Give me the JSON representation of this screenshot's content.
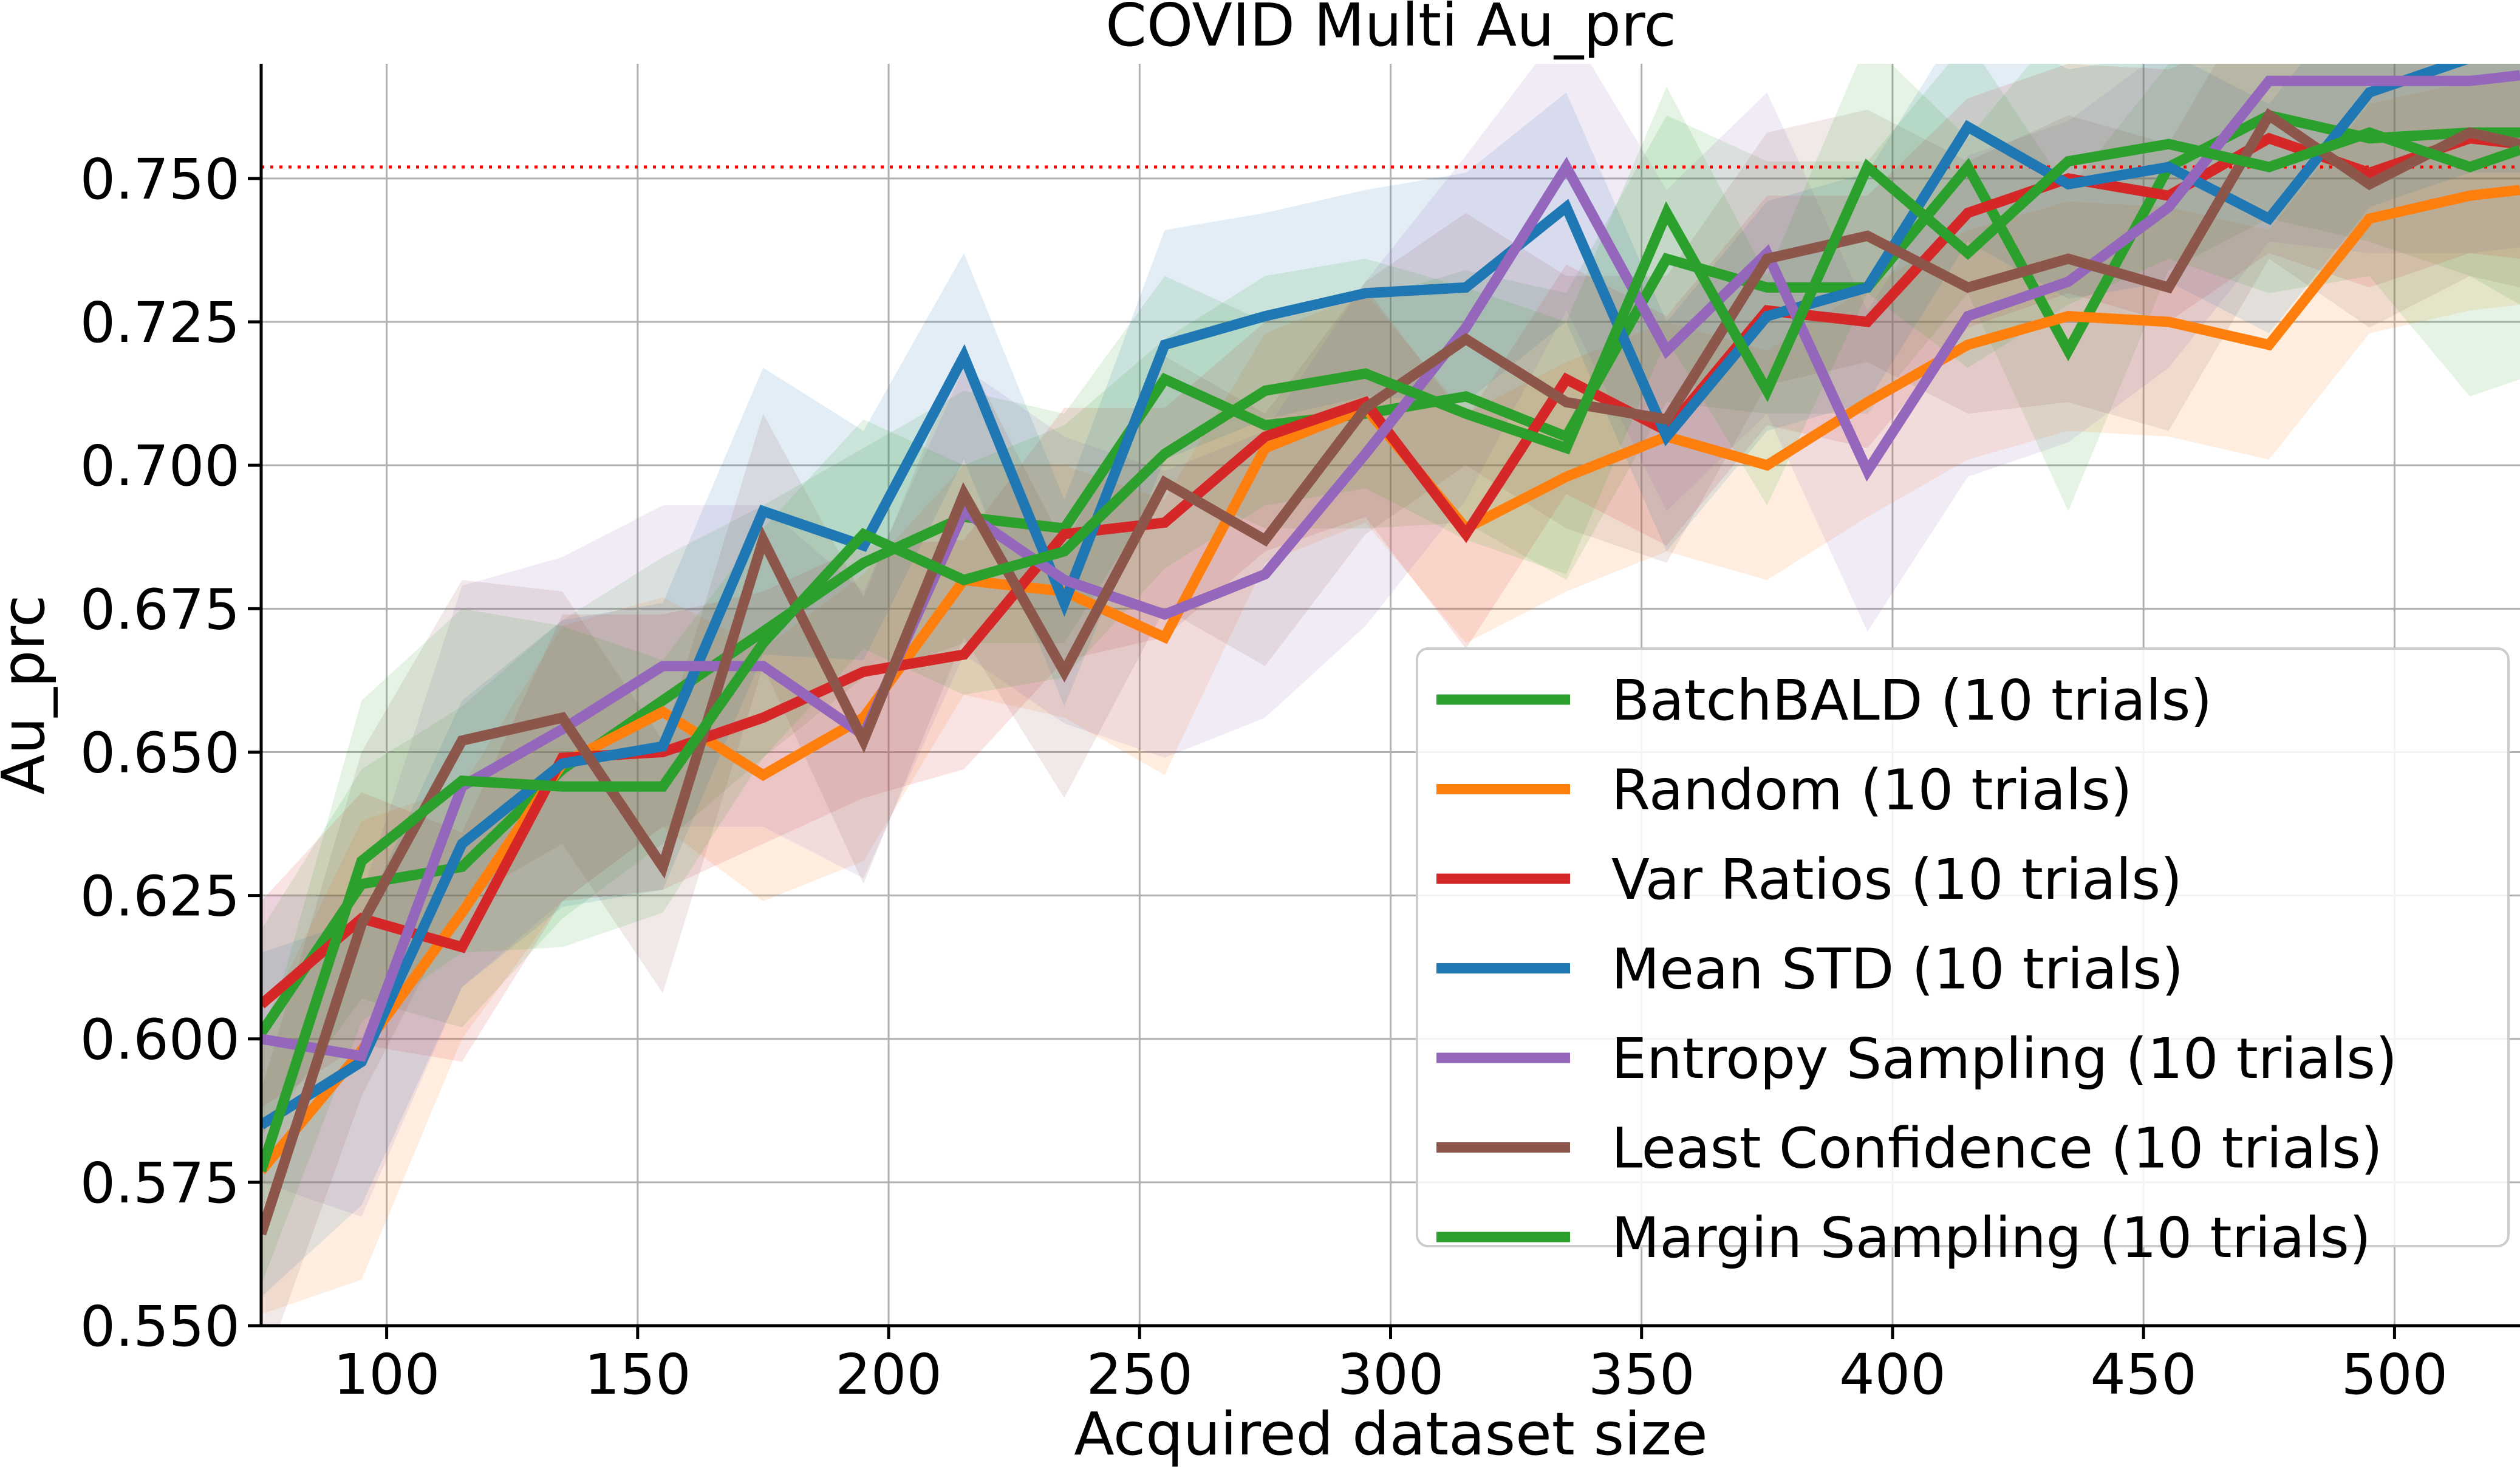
{
  "chart_data": {
    "type": "line",
    "title": "COVID Multi Au_prc",
    "xlabel": "Acquired dataset size",
    "ylabel": "Au_prc",
    "xlim": [
      75,
      525
    ],
    "ylim": [
      0.55,
      0.77
    ],
    "xticks": [
      100,
      150,
      200,
      250,
      300,
      350,
      400,
      450,
      500
    ],
    "yticks": [
      0.55,
      0.575,
      0.6,
      0.625,
      0.65,
      0.675,
      0.7,
      0.725,
      0.75
    ],
    "ytick_labels": [
      "0.550",
      "0.575",
      "0.600",
      "0.625",
      "0.650",
      "0.675",
      "0.700",
      "0.725",
      "0.750"
    ],
    "grid": true,
    "legend_position": "lower-right",
    "reference_line": {
      "y": 0.752,
      "color": "#ff0000",
      "style": "dotted"
    },
    "x": [
      75,
      95,
      115,
      135,
      155,
      175,
      195,
      215,
      235,
      255,
      275,
      295,
      315,
      335,
      355,
      375,
      395,
      415,
      435,
      455,
      475,
      495,
      515,
      525
    ],
    "series": [
      {
        "name": "BatchBALD (10 trials)",
        "color": "#2ca02c",
        "values": [
          0.601,
          0.627,
          0.63,
          0.647,
          0.659,
          0.671,
          0.683,
          0.691,
          0.689,
          0.715,
          0.707,
          0.709,
          0.712,
          0.705,
          0.736,
          0.731,
          0.731,
          0.752,
          0.72,
          0.752,
          0.761,
          0.757,
          0.758,
          0.758
        ],
        "band": [
          0.018,
          0.02,
          0.028,
          0.026,
          0.025,
          0.022,
          0.02,
          0.022,
          0.02,
          0.018,
          0.018,
          0.02,
          0.022,
          0.025,
          0.025,
          0.022,
          0.022,
          0.022,
          0.028,
          0.018,
          0.018,
          0.018,
          0.025,
          0.03
        ]
      },
      {
        "name": "Random (10 trials)",
        "color": "#ff7f0e",
        "values": [
          0.577,
          0.598,
          0.622,
          0.648,
          0.657,
          0.646,
          0.656,
          0.68,
          0.678,
          0.67,
          0.703,
          0.71,
          0.689,
          0.698,
          0.705,
          0.7,
          0.711,
          0.721,
          0.726,
          0.725,
          0.721,
          0.743,
          0.747,
          0.748
        ],
        "band": [
          0.025,
          0.04,
          0.022,
          0.024,
          0.02,
          0.022,
          0.025,
          0.02,
          0.022,
          0.024,
          0.02,
          0.02,
          0.02,
          0.02,
          0.02,
          0.02,
          0.02,
          0.02,
          0.02,
          0.02,
          0.02,
          0.02,
          0.02,
          0.02
        ]
      },
      {
        "name": "Var Ratios (10 trials)",
        "color": "#d62728",
        "values": [
          0.606,
          0.621,
          0.616,
          0.649,
          0.65,
          0.656,
          0.664,
          0.667,
          0.688,
          0.69,
          0.705,
          0.711,
          0.688,
          0.715,
          0.706,
          0.727,
          0.725,
          0.744,
          0.75,
          0.747,
          0.757,
          0.751,
          0.757,
          0.756
        ],
        "band": [
          0.018,
          0.022,
          0.02,
          0.025,
          0.024,
          0.022,
          0.022,
          0.02,
          0.022,
          0.02,
          0.02,
          0.02,
          0.02,
          0.02,
          0.02,
          0.02,
          0.022,
          0.02,
          0.02,
          0.022,
          0.02,
          0.02,
          0.02,
          0.02
        ]
      },
      {
        "name": "Mean STD (10 trials)",
        "color": "#1f77b4",
        "values": [
          0.585,
          0.596,
          0.634,
          0.648,
          0.651,
          0.692,
          0.686,
          0.719,
          0.676,
          0.721,
          0.726,
          0.73,
          0.731,
          0.745,
          0.705,
          0.726,
          0.731,
          0.759,
          0.749,
          0.752,
          0.743,
          0.765,
          0.771,
          0.771
        ],
        "band": [
          0.03,
          0.025,
          0.025,
          0.025,
          0.025,
          0.025,
          0.02,
          0.018,
          0.018,
          0.02,
          0.018,
          0.018,
          0.02,
          0.02,
          0.02,
          0.02,
          0.02,
          0.02,
          0.02,
          0.02,
          0.02,
          0.02,
          0.02,
          0.02
        ]
      },
      {
        "name": "Entropy Sampling (10 trials)",
        "color": "#9467bd",
        "values": [
          0.6,
          0.597,
          0.644,
          0.654,
          0.665,
          0.665,
          0.653,
          0.692,
          0.68,
          0.674,
          0.681,
          0.702,
          0.724,
          0.752,
          0.72,
          0.737,
          0.699,
          0.726,
          0.732,
          0.745,
          0.767,
          0.767,
          0.767,
          0.768
        ],
        "band": [
          0.025,
          0.028,
          0.035,
          0.03,
          0.028,
          0.028,
          0.025,
          0.025,
          0.025,
          0.025,
          0.025,
          0.03,
          0.03,
          0.025,
          0.028,
          0.028,
          0.028,
          0.028,
          0.028,
          0.028,
          0.028,
          0.03,
          0.03,
          0.03
        ]
      },
      {
        "name": "Least Confidence (10 trials)",
        "color": "#8c564b",
        "values": [
          0.566,
          0.62,
          0.652,
          0.656,
          0.63,
          0.687,
          0.652,
          0.695,
          0.664,
          0.697,
          0.687,
          0.71,
          0.722,
          0.711,
          0.708,
          0.736,
          0.74,
          0.731,
          0.736,
          0.731,
          0.761,
          0.749,
          0.758,
          0.756
        ],
        "band": [
          0.025,
          0.03,
          0.028,
          0.022,
          0.022,
          0.022,
          0.025,
          0.025,
          0.022,
          0.022,
          0.022,
          0.022,
          0.022,
          0.022,
          0.025,
          0.022,
          0.022,
          0.022,
          0.025,
          0.025,
          0.025,
          0.025,
          0.025,
          0.025
        ]
      },
      {
        "name": "Margin Sampling (10 trials)",
        "color": "#2ca02c",
        "values": [
          0.577,
          0.631,
          0.645,
          0.644,
          0.644,
          0.669,
          0.688,
          0.68,
          0.685,
          0.702,
          0.713,
          0.716,
          0.709,
          0.703,
          0.744,
          0.713,
          0.752,
          0.737,
          0.753,
          0.756,
          0.752,
          0.758,
          0.752,
          0.755
        ],
        "band": [
          0.02,
          0.028,
          0.03,
          0.028,
          0.022,
          0.02,
          0.02,
          0.02,
          0.022,
          0.02,
          0.02,
          0.02,
          0.022,
          0.022,
          0.022,
          0.02,
          0.022,
          0.02,
          0.025,
          0.02,
          0.022,
          0.025,
          0.04,
          0.04
        ]
      }
    ]
  }
}
